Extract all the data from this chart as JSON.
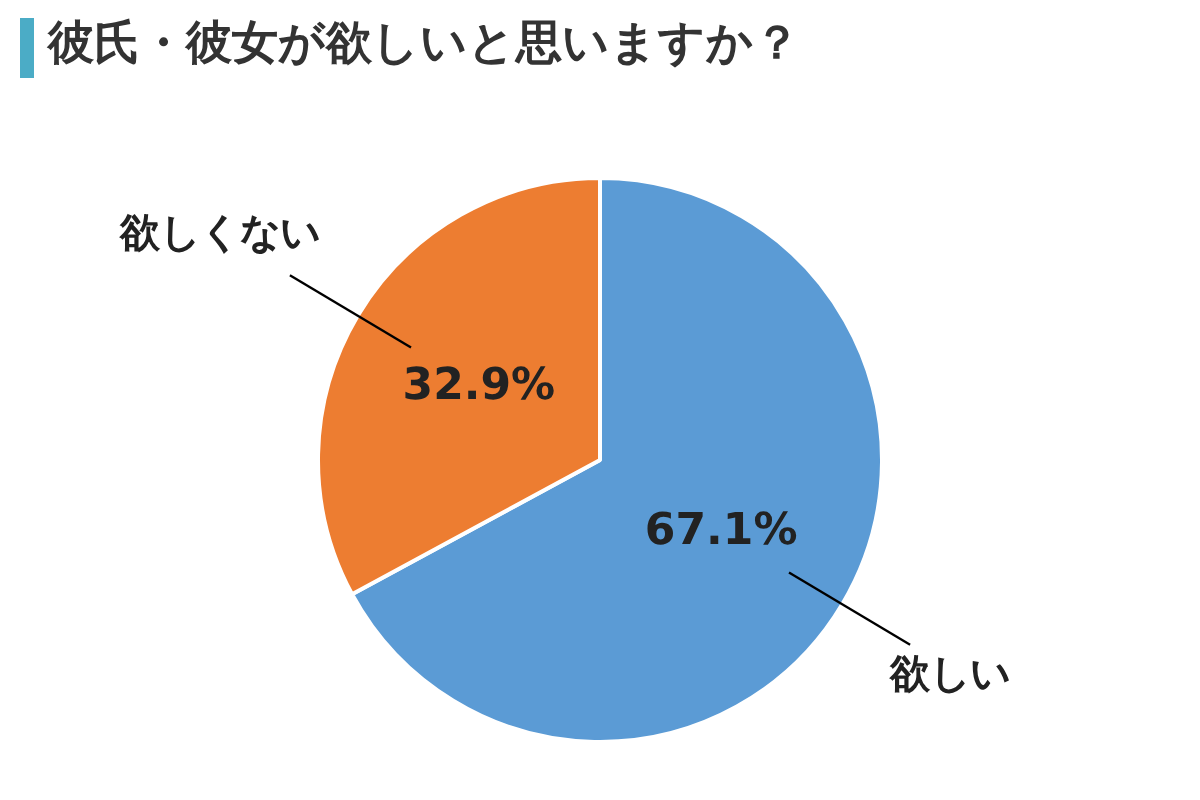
{
  "chart_data": {
    "type": "pie",
    "title": "彼氏・彼女が欲しいと思いますか？",
    "categories": [
      "欲しい",
      "欲しくない"
    ],
    "values": [
      67.1,
      32.9
    ],
    "colors": [
      "#5b9bd5",
      "#ed7d31"
    ],
    "value_labels": [
      "67.1%",
      "32.9%"
    ],
    "legend": false
  }
}
